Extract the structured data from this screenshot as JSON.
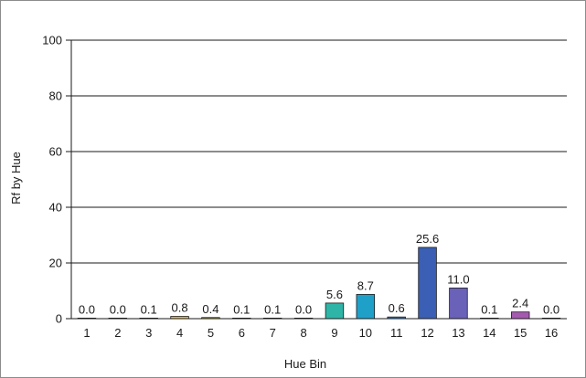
{
  "chart_data": {
    "type": "bar",
    "title": "",
    "xlabel": "Hue Bin",
    "ylabel": "Rf by Hue",
    "ylim": [
      0,
      100
    ],
    "yticks": [
      0,
      20,
      40,
      60,
      80,
      100
    ],
    "grid": true,
    "categories": [
      "1",
      "2",
      "3",
      "4",
      "5",
      "6",
      "7",
      "8",
      "9",
      "10",
      "11",
      "12",
      "13",
      "14",
      "15",
      "16"
    ],
    "values": [
      0.0,
      0.0,
      0.1,
      0.8,
      0.4,
      0.1,
      0.1,
      0.0,
      5.6,
      8.7,
      0.6,
      25.6,
      11.0,
      0.1,
      2.4,
      0.0
    ],
    "data_labels": [
      "0.0",
      "0.0",
      "0.1",
      "0.8",
      "0.4",
      "0.1",
      "0.1",
      "0.0",
      "5.6",
      "8.7",
      "0.6",
      "25.6",
      "11.0",
      "0.1",
      "2.4",
      "0.0"
    ],
    "colors": [
      "#e74a4a",
      "#e86a3c",
      "#e8a04a",
      "#e8b84a",
      "#d8cf5a",
      "#a8c84e",
      "#6ab04c",
      "#3fa66a",
      "#2fb5a8",
      "#1fa0c8",
      "#3a80c8",
      "#3a5fb4",
      "#6a62b8",
      "#8a64b6",
      "#a55ab0",
      "#c05a90"
    ]
  }
}
